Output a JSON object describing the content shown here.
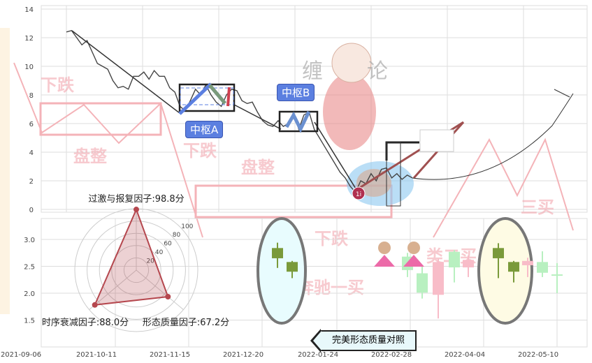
{
  "chart_data": [
    {
      "type": "line",
      "panel": "top",
      "ylim": [
        0,
        14
      ],
      "yticks": [
        "0",
        "2",
        "4",
        "6",
        "8",
        "10",
        "12",
        "14"
      ],
      "grid": true,
      "series": [
        {
          "values": [
            12.4,
            12.5,
            12.0,
            11.5,
            11.8,
            11.0,
            10.2,
            10.0,
            9.8,
            9.0,
            8.5,
            8.6,
            8.4,
            9.3,
            9.3,
            9.6,
            9.1,
            9.7,
            9.3,
            9.3,
            8.5,
            8.2,
            7.2,
            6.9,
            7.6,
            8.4,
            8.0,
            8.7,
            8.0,
            7.5,
            7.2,
            8.0,
            8.4,
            8.3,
            7.6,
            7.4,
            7.5,
            6.8,
            6.2,
            5.9,
            5.8,
            6.2,
            5.8,
            6.0,
            6.8,
            5.6,
            6.6,
            6.8,
            5.6,
            5.0,
            4.4,
            3.8,
            3.2,
            2.6,
            2.2,
            1.6,
            1.2,
            2.0,
            1.8,
            2.5,
            2.0,
            2.8,
            2.9,
            2.2,
            2.5,
            2.1,
            2.4,
            2.2
          ]
        }
      ],
      "annotations": {
        "zhongshu_a": "中枢A",
        "zhongshu_b": "中枢B",
        "point_marker": "1i"
      },
      "watermarks": [
        "下跌",
        "盘整",
        "下跌",
        "盘整",
        "下跌",
        "奔驰一买",
        "类二买",
        "三买",
        "缠论"
      ]
    },
    {
      "type": "candlestick",
      "panel": "bottom",
      "ylim": [
        1.0,
        3.4
      ],
      "yticks": [
        "1.5",
        "2.0",
        "2.5",
        "3.0"
      ],
      "xticks": [
        "2021-09-06",
        "2021-10-11",
        "2021-11-15",
        "2021-12-20",
        "2022-01-24",
        "2022-02-28",
        "2022-04-04",
        "2022-05-10"
      ],
      "grid": true,
      "candles": [
        {
          "open": 2.65,
          "close": 2.84,
          "high": 2.94,
          "low": 2.47,
          "color": "#7a9a3a"
        },
        {
          "open": 2.4,
          "close": 2.58,
          "high": 2.6,
          "low": 2.28,
          "color": "#7a9a3a"
        },
        {
          "open": 2.68,
          "close": 2.43,
          "high": 2.75,
          "low": 2.3,
          "color": "#b8f0c0"
        },
        {
          "open": 2.37,
          "close": 2.01,
          "high": 2.5,
          "low": 1.9,
          "color": "#b8f0c0"
        },
        {
          "open": 1.97,
          "close": 2.58,
          "high": 2.64,
          "low": 1.53,
          "color": "#f8bcc8"
        },
        {
          "open": 2.48,
          "close": 2.77,
          "high": 2.8,
          "low": 2.2,
          "color": "#b8f0c0"
        },
        {
          "open": 2.48,
          "close": 2.62,
          "high": 2.7,
          "low": 2.3,
          "color": "#f8bcc8"
        },
        {
          "open": 2.65,
          "close": 2.84,
          "high": 2.93,
          "low": 2.28,
          "color": "#7a9a3a"
        },
        {
          "open": 2.4,
          "close": 2.58,
          "high": 2.6,
          "low": 2.2,
          "color": "#7a9a3a"
        },
        {
          "open": 2.52,
          "close": 2.6,
          "high": 2.66,
          "low": 2.3,
          "color": "#f8bcc8"
        },
        {
          "open": 2.38,
          "close": 2.58,
          "high": 2.78,
          "low": 2.3,
          "color": "#b8f0c0"
        },
        {
          "open": 2.33,
          "close": 2.35,
          "high": 2.56,
          "low": 2.0,
          "color": "#b8f0c0"
        }
      ]
    },
    {
      "type": "radar",
      "rlim": [
        0,
        100
      ],
      "rticks": [
        "20",
        "40",
        "60",
        "80",
        "100"
      ],
      "axes": [
        {
          "label": "过激与报复因子:98.8分",
          "value": 98.8
        },
        {
          "label": "形态质量因子:67.2分",
          "value": 67.2
        },
        {
          "label": "时序衰减因子:88.0分",
          "value": 88.0
        }
      ],
      "color": "#b5474e"
    }
  ],
  "compare_button": "完美形态质量对照"
}
